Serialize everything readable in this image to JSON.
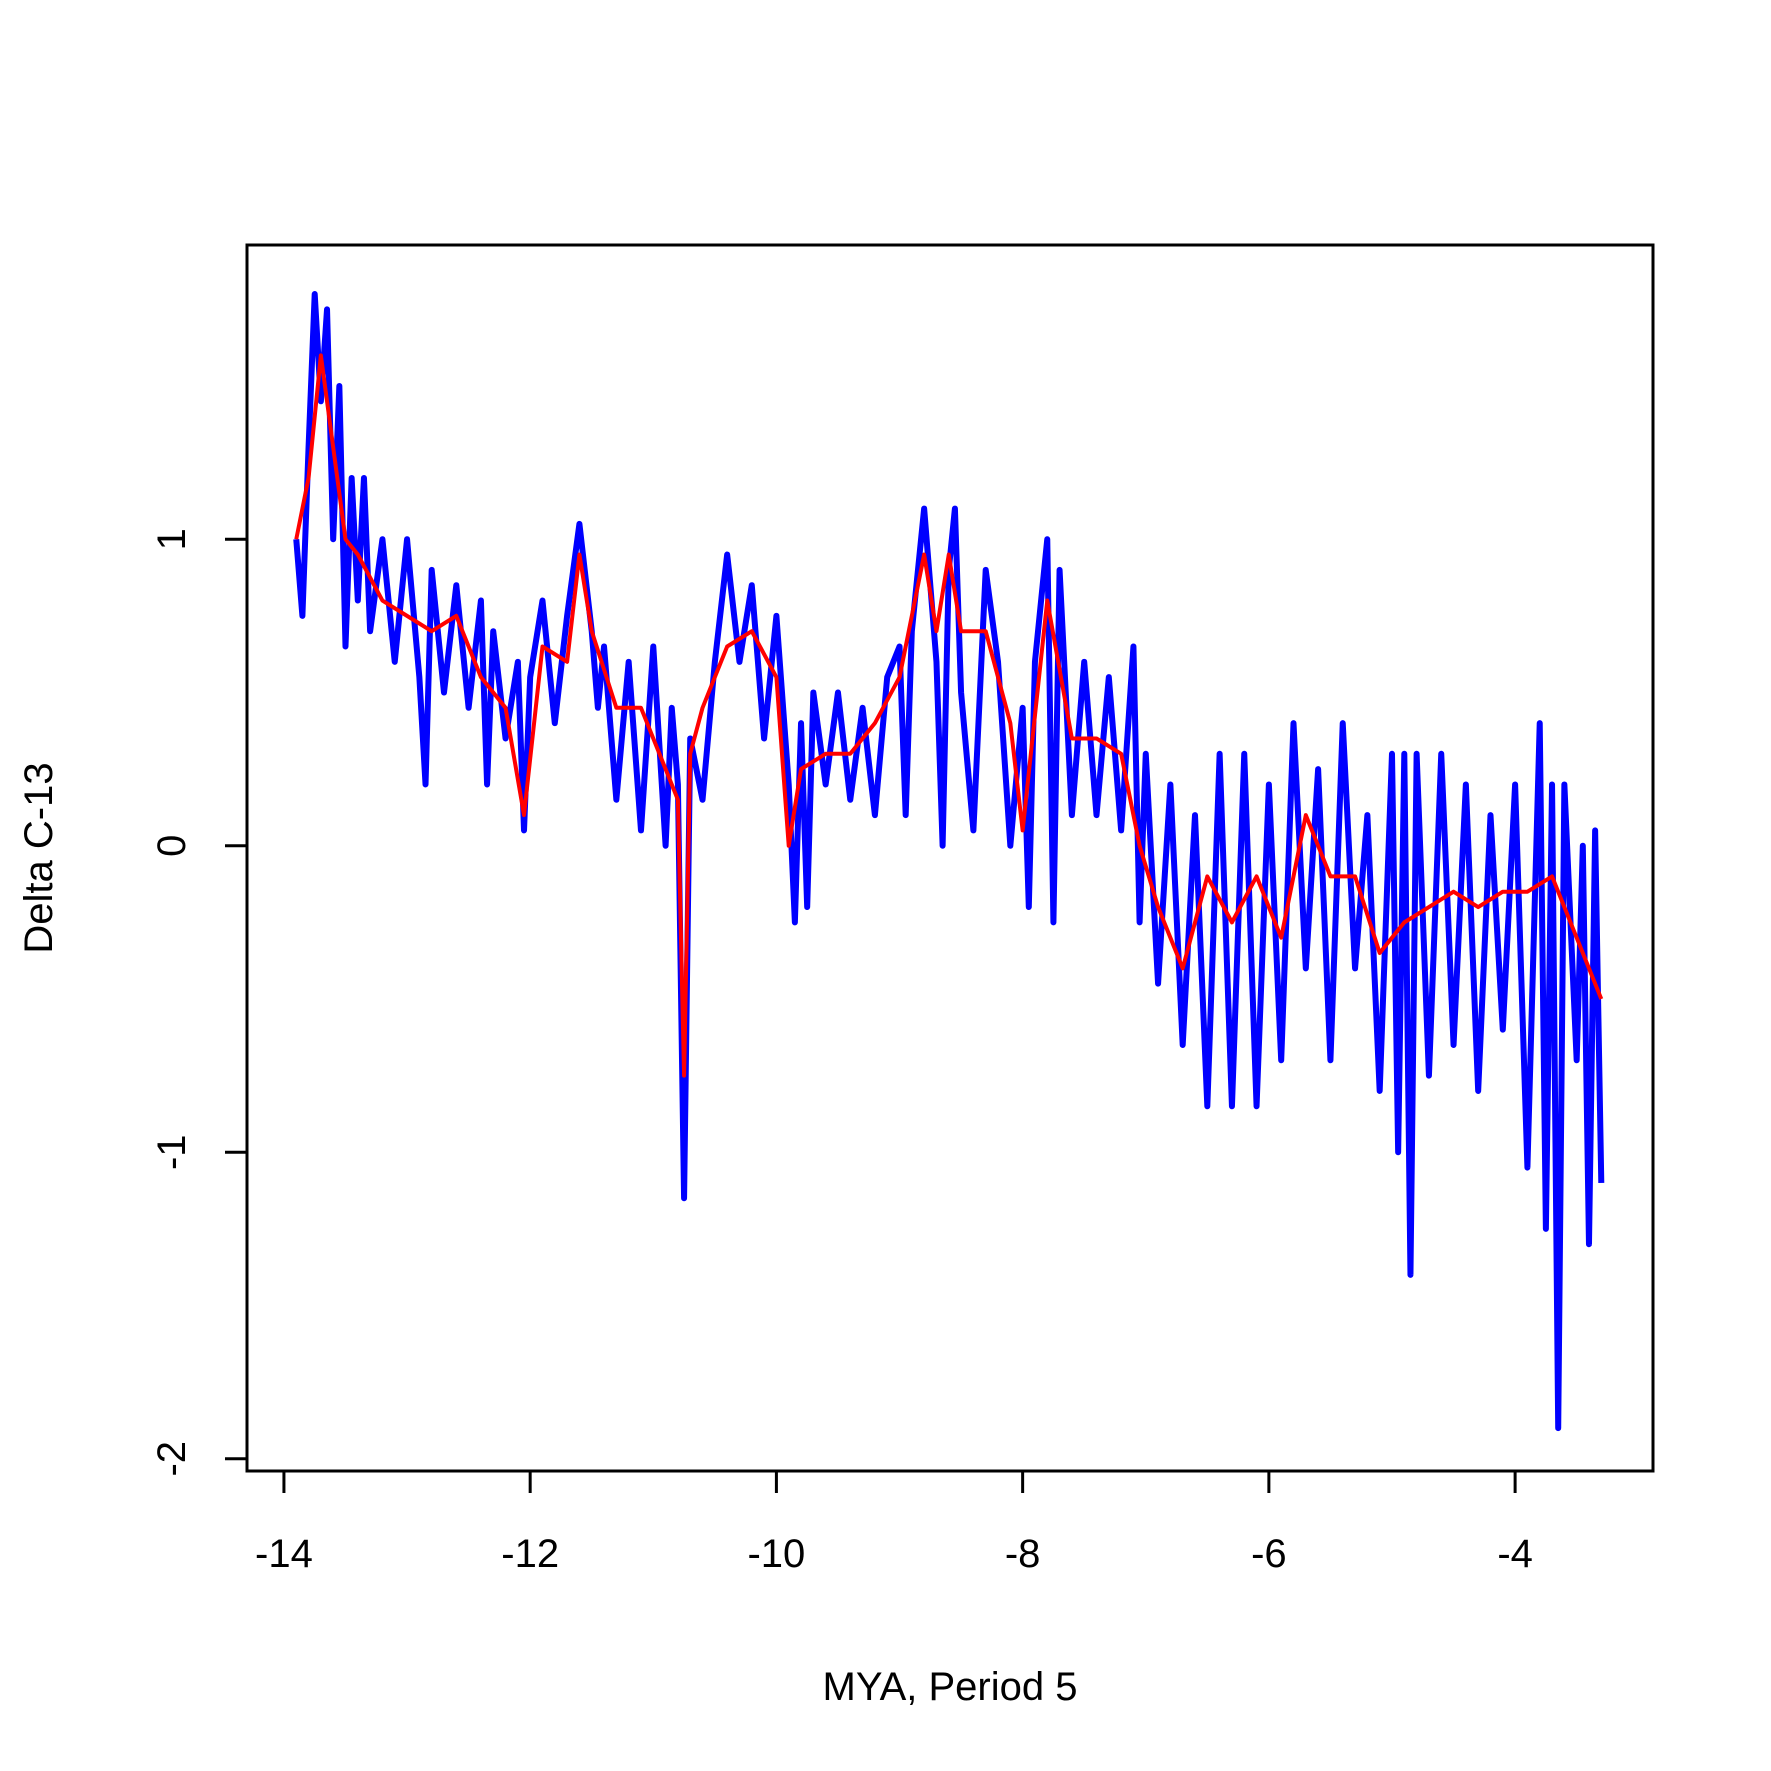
{
  "chart_data": {
    "type": "line",
    "xlabel": "MYA, Period 5",
    "ylabel": "Delta C-13",
    "xlim": [
      -14.3,
      -2.88
    ],
    "ylim": [
      -2.04,
      1.96
    ],
    "xticks": [
      -14,
      -12,
      -10,
      -8,
      -6,
      -4
    ],
    "yticks": [
      -2,
      -1,
      0,
      1
    ],
    "series": [
      {
        "color": "#0000ff",
        "x": [
          -13.9,
          -13.85,
          -13.8,
          -13.75,
          -13.7,
          -13.65,
          -13.6,
          -13.55,
          -13.5,
          -13.45,
          -13.4,
          -13.35,
          -13.3,
          -13.2,
          -13.1,
          -13.0,
          -12.9,
          -12.85,
          -12.8,
          -12.7,
          -12.6,
          -12.5,
          -12.4,
          -12.35,
          -12.3,
          -12.2,
          -12.1,
          -12.05,
          -12.0,
          -11.9,
          -11.8,
          -11.7,
          -11.6,
          -11.5,
          -11.45,
          -11.4,
          -11.3,
          -11.2,
          -11.1,
          -11.0,
          -10.9,
          -10.85,
          -10.8,
          -10.75,
          -10.7,
          -10.6,
          -10.5,
          -10.4,
          -10.3,
          -10.2,
          -10.1,
          -10.0,
          -9.9,
          -9.85,
          -9.8,
          -9.75,
          -9.7,
          -9.6,
          -9.5,
          -9.4,
          -9.3,
          -9.2,
          -9.1,
          -9.0,
          -8.95,
          -8.9,
          -8.8,
          -8.7,
          -8.65,
          -8.6,
          -8.55,
          -8.5,
          -8.4,
          -8.3,
          -8.2,
          -8.1,
          -8.0,
          -7.95,
          -7.9,
          -7.8,
          -7.75,
          -7.7,
          -7.6,
          -7.5,
          -7.4,
          -7.3,
          -7.2,
          -7.1,
          -7.05,
          -7.0,
          -6.9,
          -6.8,
          -6.7,
          -6.6,
          -6.5,
          -6.4,
          -6.3,
          -6.2,
          -6.1,
          -6.0,
          -5.9,
          -5.8,
          -5.7,
          -5.6,
          -5.5,
          -5.4,
          -5.3,
          -5.2,
          -5.1,
          -5.0,
          -4.95,
          -4.9,
          -4.85,
          -4.8,
          -4.7,
          -4.6,
          -4.5,
          -4.4,
          -4.3,
          -4.2,
          -4.1,
          -4.0,
          -3.9,
          -3.8,
          -3.75,
          -3.7,
          -3.65,
          -3.6,
          -3.5,
          -3.45,
          -3.4,
          -3.35,
          -3.3
        ],
        "values": [
          1.0,
          0.75,
          1.3,
          1.8,
          1.45,
          1.75,
          1.0,
          1.5,
          0.65,
          1.2,
          0.8,
          1.2,
          0.7,
          1.0,
          0.6,
          1.0,
          0.55,
          0.2,
          0.9,
          0.5,
          0.85,
          0.45,
          0.8,
          0.2,
          0.7,
          0.35,
          0.6,
          0.05,
          0.55,
          0.8,
          0.4,
          0.75,
          1.05,
          0.7,
          0.45,
          0.65,
          0.15,
          0.6,
          0.05,
          0.65,
          0.0,
          0.45,
          0.2,
          -1.15,
          0.35,
          0.15,
          0.6,
          0.95,
          0.6,
          0.85,
          0.35,
          0.75,
          0.2,
          -0.25,
          0.4,
          -0.2,
          0.5,
          0.2,
          0.5,
          0.15,
          0.45,
          0.1,
          0.55,
          0.65,
          0.1,
          0.7,
          1.1,
          0.6,
          0.0,
          0.9,
          1.1,
          0.5,
          0.05,
          0.9,
          0.6,
          0.0,
          0.45,
          -0.2,
          0.6,
          1.0,
          -0.25,
          0.9,
          0.1,
          0.6,
          0.1,
          0.55,
          0.05,
          0.65,
          -0.25,
          0.3,
          -0.45,
          0.2,
          -0.65,
          0.1,
          -0.85,
          0.3,
          -0.85,
          0.3,
          -0.85,
          0.2,
          -0.7,
          0.4,
          -0.4,
          0.25,
          -0.7,
          0.4,
          -0.4,
          0.1,
          -0.8,
          0.3,
          -1.0,
          0.3,
          -1.4,
          0.3,
          -0.75,
          0.3,
          -0.65,
          0.2,
          -0.8,
          0.1,
          -0.6,
          0.2,
          -1.05,
          0.4,
          -1.25,
          0.2,
          -1.9,
          0.2,
          -0.7,
          0.0,
          -1.3,
          0.05,
          -1.1
        ]
      },
      {
        "color": "#ff0000",
        "x": [
          -13.9,
          -13.8,
          -13.7,
          -13.6,
          -13.5,
          -13.4,
          -13.2,
          -13.0,
          -12.8,
          -12.6,
          -12.4,
          -12.2,
          -12.05,
          -11.9,
          -11.7,
          -11.6,
          -11.5,
          -11.3,
          -11.1,
          -10.9,
          -10.8,
          -10.75,
          -10.7,
          -10.6,
          -10.4,
          -10.2,
          -10.0,
          -9.9,
          -9.8,
          -9.6,
          -9.4,
          -9.2,
          -9.0,
          -8.8,
          -8.7,
          -8.6,
          -8.5,
          -8.3,
          -8.1,
          -8.0,
          -7.8,
          -7.6,
          -7.4,
          -7.2,
          -7.05,
          -6.9,
          -6.7,
          -6.5,
          -6.3,
          -6.1,
          -5.9,
          -5.7,
          -5.5,
          -5.3,
          -5.1,
          -4.9,
          -4.7,
          -4.5,
          -4.3,
          -4.1,
          -3.9,
          -3.7,
          -3.5,
          -3.3
        ],
        "values": [
          1.0,
          1.2,
          1.6,
          1.3,
          1.0,
          0.95,
          0.8,
          0.75,
          0.7,
          0.75,
          0.55,
          0.45,
          0.1,
          0.65,
          0.6,
          0.95,
          0.7,
          0.45,
          0.45,
          0.25,
          0.15,
          -0.75,
          0.3,
          0.45,
          0.65,
          0.7,
          0.55,
          0.0,
          0.25,
          0.3,
          0.3,
          0.4,
          0.55,
          0.95,
          0.7,
          0.95,
          0.7,
          0.7,
          0.4,
          0.05,
          0.8,
          0.35,
          0.35,
          0.3,
          0.0,
          -0.2,
          -0.4,
          -0.1,
          -0.25,
          -0.1,
          -0.3,
          0.1,
          -0.1,
          -0.1,
          -0.35,
          -0.25,
          -0.2,
          -0.15,
          -0.2,
          -0.15,
          -0.15,
          -0.1,
          -0.3,
          -0.5
        ]
      }
    ]
  }
}
